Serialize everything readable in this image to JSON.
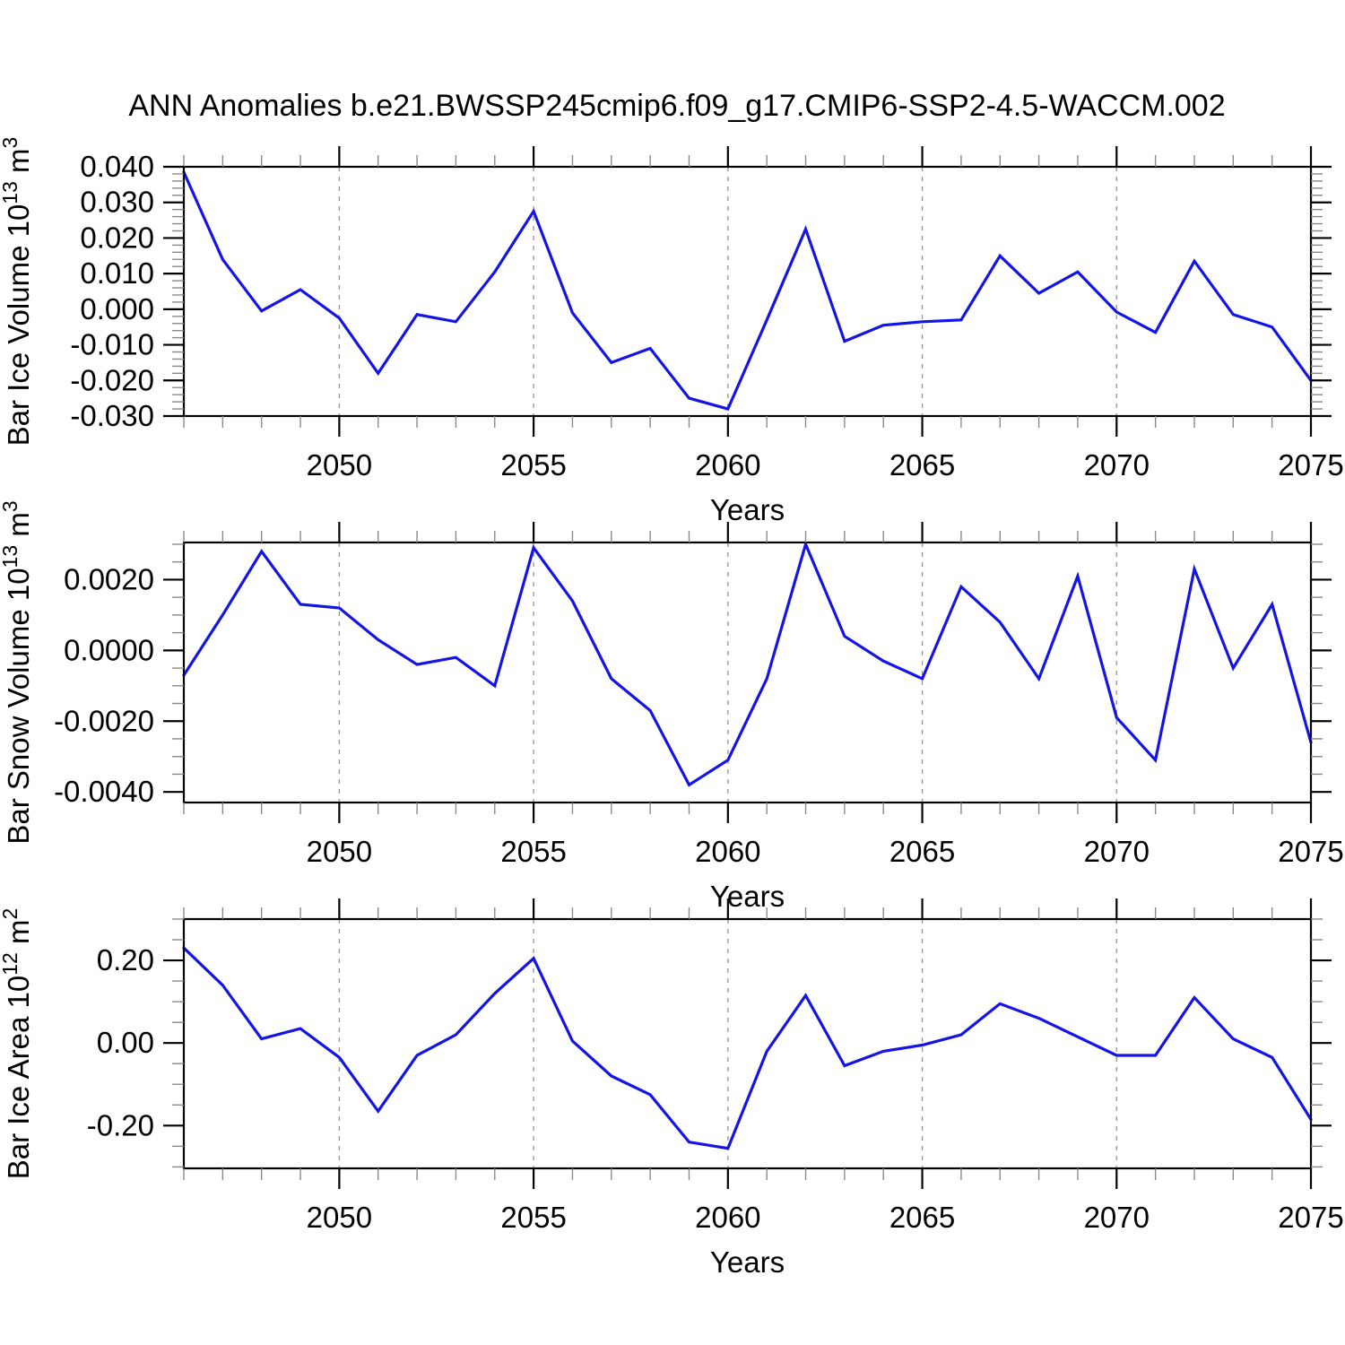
{
  "title": "ANN Anomalies b.e21.BWSSP245cmip6.f09_g17.CMIP6-SSP2-4.5-WACCM.002",
  "xlabel": "Years",
  "colors": {
    "line": "#1414e6",
    "frame": "#000000",
    "major_tick": "#000000",
    "minor_tick": "#8a8a8a",
    "grid": "#999999",
    "text": "#000000",
    "background": "#ffffff"
  },
  "x_axis": {
    "xlim": [
      2046,
      2075
    ],
    "years": [
      2046,
      2047,
      2048,
      2049,
      2050,
      2051,
      2052,
      2053,
      2054,
      2055,
      2056,
      2057,
      2058,
      2059,
      2060,
      2061,
      2062,
      2063,
      2064,
      2065,
      2066,
      2067,
      2068,
      2069,
      2070,
      2071,
      2072,
      2073,
      2074,
      2075
    ],
    "major_ticks": [
      2050,
      2055,
      2060,
      2065,
      2070,
      2075
    ],
    "major_tick_labels": [
      "2050",
      "2055",
      "2060",
      "2065",
      "2070",
      "2075"
    ],
    "grid_years": [
      2050,
      2055,
      2060,
      2065,
      2070
    ],
    "minor_tick_step": 1
  },
  "chart_data": [
    {
      "type": "line",
      "name": "bar-ice-volume",
      "ylabel_parts": [
        {
          "t": "Bar Ice Volume 10"
        },
        {
          "t": "13",
          "sup": true
        },
        {
          "t": " m"
        },
        {
          "t": "3",
          "sup": true
        }
      ],
      "ylim": [
        -0.03,
        0.04
      ],
      "y_major": [
        {
          "v": 0.04,
          "label": "0.040"
        },
        {
          "v": 0.03,
          "label": "0.030"
        },
        {
          "v": 0.02,
          "label": "0.020"
        },
        {
          "v": 0.01,
          "label": "0.010"
        },
        {
          "v": 0.0,
          "label": "0.000"
        },
        {
          "v": -0.01,
          "label": "-0.010"
        },
        {
          "v": -0.02,
          "label": "-0.020"
        },
        {
          "v": -0.03,
          "label": "-0.030"
        }
      ],
      "y_minor_step": 0.002,
      "values": [
        0.0385,
        0.014,
        -0.0005,
        0.0055,
        -0.0025,
        -0.018,
        -0.0015,
        -0.0035,
        0.0105,
        0.0275,
        -0.001,
        -0.015,
        -0.011,
        -0.025,
        -0.028,
        -0.003,
        0.0225,
        -0.009,
        -0.0045,
        -0.0035,
        -0.003,
        0.015,
        0.0045,
        0.0105,
        -0.0008,
        -0.0065,
        0.0135,
        -0.0015,
        -0.005,
        -0.02
      ]
    },
    {
      "type": "line",
      "name": "bar-snow-volume",
      "ylabel_parts": [
        {
          "t": "Bar Snow Volume 10"
        },
        {
          "t": "13",
          "sup": true
        },
        {
          "t": " m"
        },
        {
          "t": "3",
          "sup": true
        }
      ],
      "ylim": [
        -0.0043,
        0.00305
      ],
      "y_major": [
        {
          "v": 0.002,
          "label": "0.0020"
        },
        {
          "v": 0.0,
          "label": "0.0000"
        },
        {
          "v": -0.002,
          "label": "-0.0020"
        },
        {
          "v": -0.004,
          "label": "-0.0040"
        }
      ],
      "y_minor_step": 0.0005,
      "values": [
        -0.0007,
        0.001,
        0.0028,
        0.0013,
        0.0012,
        0.0003,
        -0.0004,
        -0.0002,
        -0.001,
        0.0029,
        0.0014,
        -0.0008,
        -0.0017,
        -0.0038,
        -0.0031,
        -0.0008,
        0.003,
        0.0004,
        -0.0003,
        -0.0008,
        0.0018,
        0.0008,
        -0.0008,
        0.0021,
        -0.0019,
        -0.0031,
        0.0023,
        -0.0005,
        0.0013,
        -0.0026
      ]
    },
    {
      "type": "line",
      "name": "bar-ice-area",
      "ylabel_parts": [
        {
          "t": "Bar Ice Area 10"
        },
        {
          "t": "12",
          "sup": true
        },
        {
          "t": " m"
        },
        {
          "t": "2",
          "sup": true
        }
      ],
      "ylim": [
        -0.3035,
        0.3
      ],
      "y_major": [
        {
          "v": 0.2,
          "label": "0.20"
        },
        {
          "v": 0.0,
          "label": "0.00"
        },
        {
          "v": -0.2,
          "label": "-0.20"
        }
      ],
      "y_minor_step": 0.05,
      "values": [
        0.23,
        0.14,
        0.01,
        0.035,
        -0.035,
        -0.165,
        -0.03,
        0.02,
        0.12,
        0.205,
        0.005,
        -0.08,
        -0.125,
        -0.24,
        -0.255,
        -0.02,
        0.115,
        -0.055,
        -0.02,
        -0.005,
        0.02,
        0.095,
        0.06,
        0.015,
        -0.03,
        -0.03,
        0.11,
        0.01,
        -0.035,
        -0.185
      ]
    }
  ]
}
